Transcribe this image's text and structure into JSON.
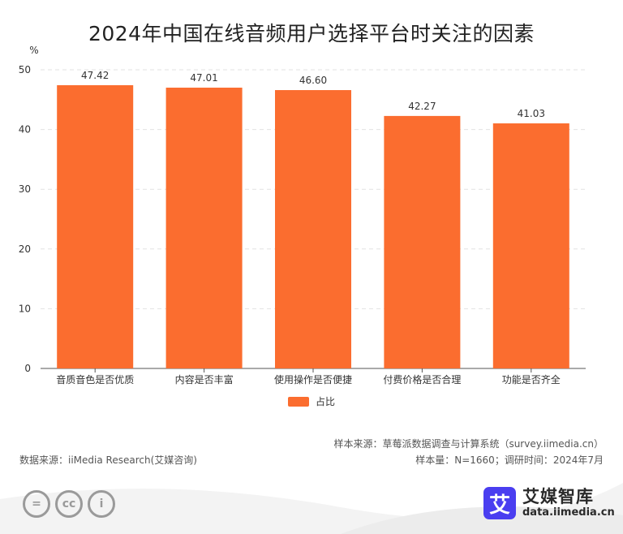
{
  "chart_data": {
    "type": "bar",
    "title": "2024年中国在线音频用户选择平台时关注的因素",
    "ylabel": "%",
    "ylim": [
      0,
      50
    ],
    "yticks": [
      0,
      10,
      20,
      30,
      40,
      50
    ],
    "grid": true,
    "legend_position": "bottom",
    "bar_color": "#fb6d2f",
    "categories": [
      "音质音色是否优质",
      "内容是否丰富",
      "使用操作是否便捷",
      "付费价格是否合理",
      "功能是否齐全"
    ],
    "series": [
      {
        "name": "占比",
        "values": [
          47.42,
          47.01,
          46.6,
          42.27,
          41.03
        ]
      }
    ],
    "value_labels": [
      "47.42",
      "47.01",
      "46.60",
      "42.27",
      "41.03"
    ]
  },
  "sources": {
    "data_source": "数据来源：iiMedia Research(艾媒咨询)",
    "sample_source": "样本来源：草莓派数据调查与计算系统（survey.iimedia.cn）",
    "sample_info": "样本量：N=1660；调研时间：2024年7月"
  },
  "brand": {
    "logo_char": "艾",
    "name": "艾媒智库",
    "url": "data.iimedia.cn",
    "color": "#4a3ef0"
  },
  "license_icons": [
    "equals-icon",
    "cc-icon",
    "person-icon"
  ],
  "license_icon_text": [
    "=",
    "cc",
    "i"
  ]
}
